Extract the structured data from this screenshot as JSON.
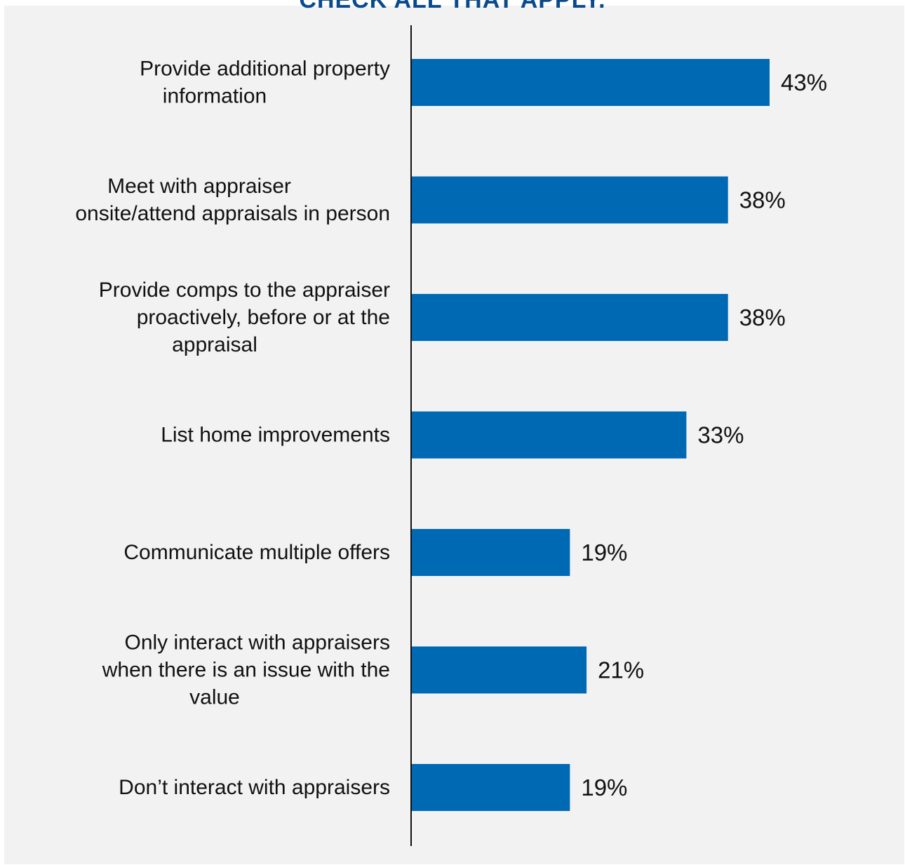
{
  "title": "CHECK ALL THAT APPLY.",
  "chart_data": {
    "type": "bar",
    "orientation": "horizontal",
    "title": "CHECK ALL THAT APPLY.",
    "categories": [
      "Provide additional property information",
      "Meet with appraiser onsite/attend appraisals in person",
      "Provide comps to the appraiser proactively, before or at the appraisal",
      "List home improvements",
      "Communicate multiple offers",
      "Only interact with appraisers when there is an issue with the value",
      "Don’t interact with appraisers"
    ],
    "category_lines": [
      [
        "Provide additional property",
        "information"
      ],
      [
        "Meet with appraiser",
        "onsite/attend appraisals in person"
      ],
      [
        "Provide comps to the appraiser",
        "proactively, before or at the",
        "appraisal"
      ],
      [
        "List home improvements"
      ],
      [
        "Communicate multiple offers"
      ],
      [
        "Only interact with appraisers",
        "when there is an issue with the",
        "value"
      ],
      [
        "Don’t interact with appraisers"
      ]
    ],
    "values": [
      43,
      38,
      38,
      33,
      19,
      21,
      19
    ],
    "value_labels": [
      "43%",
      "38%",
      "38%",
      "33%",
      "19%",
      "21%",
      "19%"
    ],
    "unit": "%",
    "xlim": [
      0,
      50
    ],
    "grid": false,
    "legend": "none",
    "colors": {
      "bar": "#0069b4",
      "axis": "#111111",
      "text": "#111111",
      "title": "#0a4a8c",
      "panel": "#f2f2f2"
    }
  }
}
